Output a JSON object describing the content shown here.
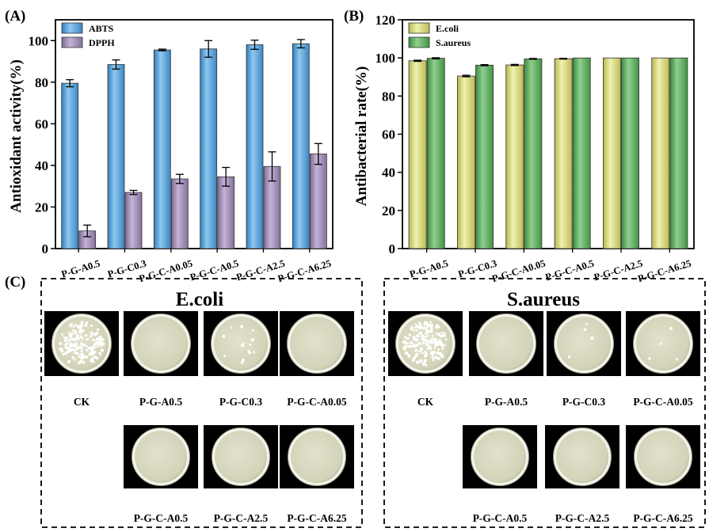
{
  "panels": {
    "a": {
      "label": "(A)"
    },
    "b": {
      "label": "(B)"
    },
    "c": {
      "label": "(C)"
    }
  },
  "colors": {
    "abts": "#56a3d8",
    "dpph": "#a08cb4",
    "ecoli": "#d7d87a",
    "saureus": "#5eaa5e",
    "plate_bg": "#000000",
    "agar": "#dcdcc4"
  },
  "chart_data": [
    {
      "type": "bar",
      "panel": "A",
      "categories": [
        "P-G-A0.5",
        "P-G-C0.3",
        "P-G-C-A0.05",
        "P-G-C-A0.5",
        "P-G-C-A2.5",
        "P-G-C-A6.25"
      ],
      "series": [
        {
          "name": "ABTS",
          "values": [
            79.5,
            88.5,
            95.5,
            96.0,
            98.0,
            98.5
          ],
          "errors": [
            1.7,
            2.2,
            0.4,
            4.0,
            2.2,
            2.0
          ]
        },
        {
          "name": "DPPH",
          "values": [
            8.5,
            27.0,
            33.5,
            34.5,
            39.5,
            45.5
          ],
          "errors": [
            2.8,
            1.0,
            2.2,
            4.5,
            7.0,
            5.0
          ]
        }
      ],
      "xlabel": "",
      "ylabel": "Antioxidant activity(%)",
      "ylim": [
        0,
        110
      ],
      "yticks": [
        0,
        20,
        40,
        60,
        80,
        100
      ],
      "grid": false,
      "legend": "top-left"
    },
    {
      "type": "bar",
      "panel": "B",
      "categories": [
        "P-G-A0.5",
        "P-G-C0.3",
        "P-G-C-A0.05",
        "P-G-C-A0.5",
        "P-G-C-A2.5",
        "P-G-C-A6.25"
      ],
      "series": [
        {
          "name": "E.coli",
          "values": [
            98.5,
            90.5,
            96.3,
            99.6,
            100,
            100
          ],
          "errors": [
            0.3,
            0.4,
            0.3,
            0.2,
            0,
            0
          ]
        },
        {
          "name": "S.aureus",
          "values": [
            99.8,
            96.2,
            99.5,
            100,
            100,
            100
          ],
          "errors": [
            0.3,
            0.3,
            0.2,
            0,
            0,
            0
          ]
        }
      ],
      "xlabel": "",
      "ylabel": "Antibacterial rate(%)",
      "ylim": [
        0,
        120
      ],
      "yticks": [
        0,
        20,
        40,
        60,
        80,
        100,
        120
      ],
      "grid": false,
      "legend": "top-left"
    }
  ],
  "plates": {
    "ecoli": {
      "title": "E.coli",
      "row1": [
        {
          "label": "CK",
          "colonies": "many"
        },
        {
          "label": "P-G-A0.5",
          "colonies": "none"
        },
        {
          "label": "P-G-C0.3",
          "colonies": "few"
        },
        {
          "label": "P-G-C-A0.05",
          "colonies": "none"
        }
      ],
      "row2": [
        {
          "label": "P-G-C-A0.5",
          "colonies": "none"
        },
        {
          "label": "P-G-C-A2.5",
          "colonies": "none"
        },
        {
          "label": "P-G-C-A6.25",
          "colonies": "none"
        }
      ]
    },
    "saureus": {
      "title": "S.aureus",
      "row1": [
        {
          "label": "CK",
          "colonies": "many"
        },
        {
          "label": "P-G-A0.5",
          "colonies": "none"
        },
        {
          "label": "P-G-C0.3",
          "colonies": "very few"
        },
        {
          "label": "P-G-C-A0.05",
          "colonies": "very few"
        }
      ],
      "row2": [
        {
          "label": "P-G-C-A0.5",
          "colonies": "none"
        },
        {
          "label": "P-G-C-A2.5",
          "colonies": "none"
        },
        {
          "label": "P-G-C-A6.25",
          "colonies": "none"
        }
      ]
    }
  }
}
